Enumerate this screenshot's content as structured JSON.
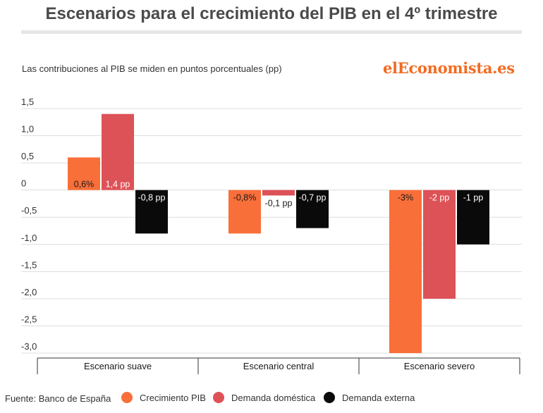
{
  "header": {
    "title": "Escenarios para el crecimiento del PIB en el 4º trimestre",
    "subtitle": "Las contribuciones al PIB se miden en puntos porcentuales (pp)",
    "brand": "elEconomista.es"
  },
  "footer": {
    "source": "Fuente: Banco de España"
  },
  "colors": {
    "crecimiento": "#f96f3a",
    "domestica": "#dd5257",
    "externa": "#0a0a0a",
    "grid": "#dddddd"
  },
  "chart_data": {
    "type": "bar",
    "title": "Escenarios para el crecimiento del PIB en el 4º trimestre",
    "ylabel": "Las contribuciones al PIB se miden en puntos porcentuales (pp)",
    "xlabel": "",
    "ylim": [
      -3.0,
      1.5
    ],
    "yticks": [
      "1,5",
      "1,0",
      "0,5",
      "0",
      "-0,5",
      "-1,0",
      "-1,5",
      "-2,0",
      "-2,5",
      "-3,0"
    ],
    "ytick_values": [
      1.5,
      1.0,
      0.5,
      0,
      -0.5,
      -1.0,
      -1.5,
      -2.0,
      -2.5,
      -3.0
    ],
    "grid": true,
    "legend_position": "bottom",
    "categories": [
      "Escenario suave",
      "Escenario central",
      "Escenario severo"
    ],
    "series": [
      {
        "name": "Crecimiento PIB",
        "values": [
          0.6,
          -0.8,
          -3.0
        ],
        "labels": [
          "0,6%",
          "-0,8%",
          "-3%"
        ]
      },
      {
        "name": "Demanda doméstica",
        "values": [
          1.4,
          -0.1,
          -2.0
        ],
        "labels": [
          "1,4 pp",
          "-0,1 pp",
          "-2 pp"
        ]
      },
      {
        "name": "Demanda externa",
        "values": [
          -0.8,
          -0.7,
          -1.0
        ],
        "labels": [
          "-0,8 pp",
          "-0,7 pp",
          "-1 pp"
        ]
      }
    ]
  }
}
